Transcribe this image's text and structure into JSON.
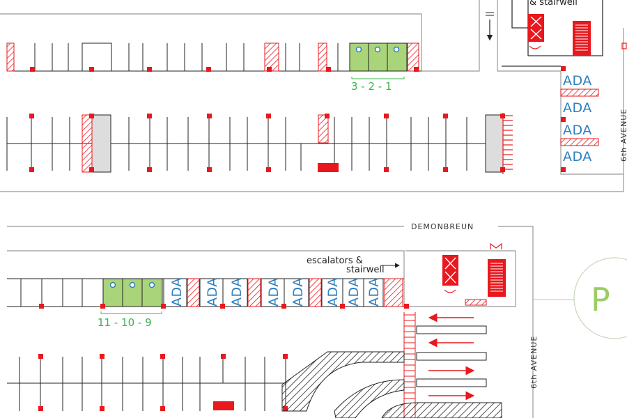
{
  "labels": {
    "stair_top": "& stairwell",
    "upper_spaces": "3 - 2 - 1",
    "lower_spaces": "11 - 10 - 9",
    "ada": "ADA",
    "street_right_upper": "6th AVENUE",
    "street_right_lower": "6th AVENUE",
    "street_middle": "DEMONBREUN",
    "escalators_line1": "escalators &",
    "escalators_line2": "stairwell",
    "park_letter": "P"
  },
  "colors": {
    "red": "#e8181e",
    "green_fill": "#a9d47a",
    "green_text": "#39b54a",
    "ada_blue": "#2f80c0",
    "gray_block": "#dddddd",
    "circle_stroke": "#b9d9a6"
  },
  "icons": {
    "ev_charger": "blue-ring-icon",
    "elevator": "red-x-box-icon",
    "stairs": "red-stair-icon",
    "escalator": "arrow-right-icon",
    "traffic_arrow": "red-arrow-icon"
  }
}
